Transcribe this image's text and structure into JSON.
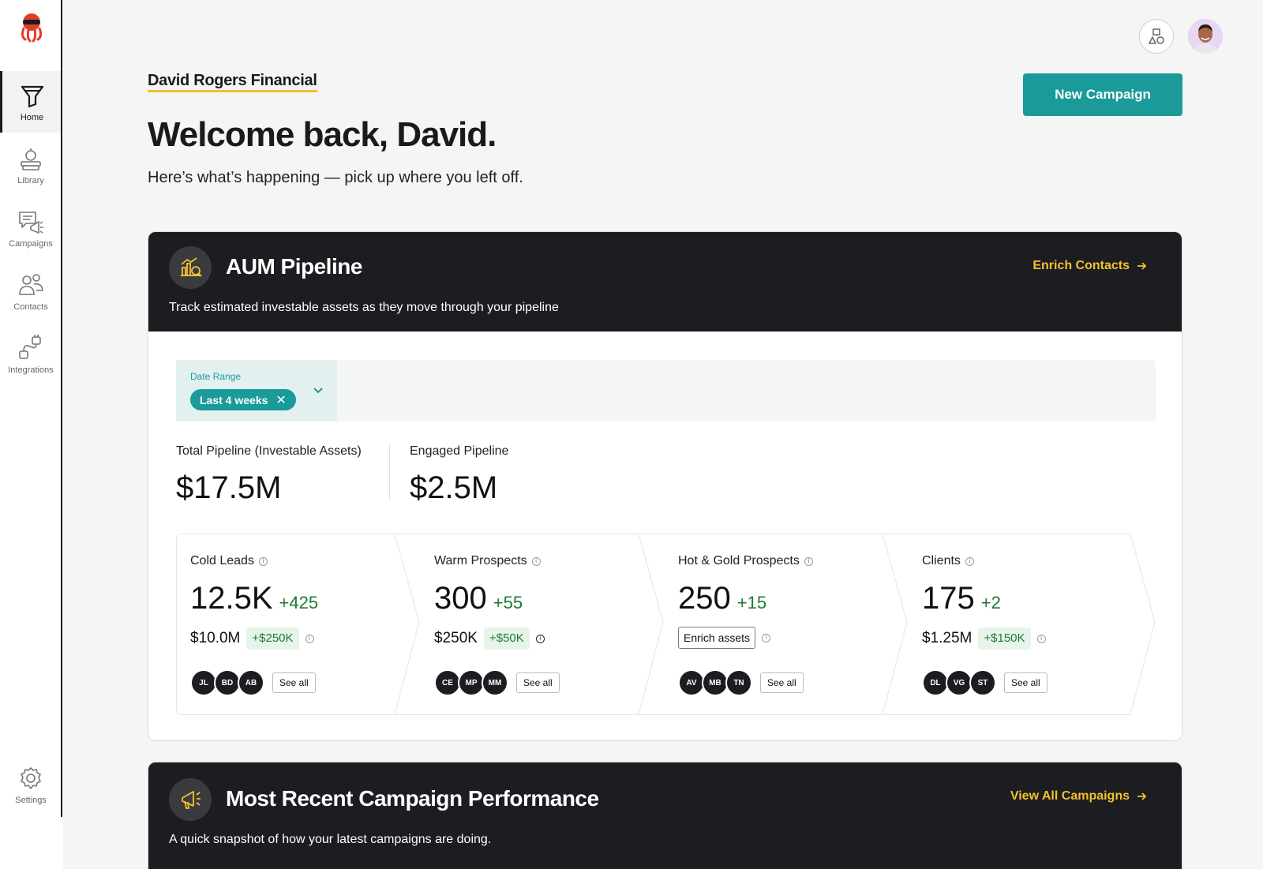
{
  "sidebar": {
    "items": [
      {
        "label": "Home",
        "active": true
      },
      {
        "label": "Library"
      },
      {
        "label": "Campaigns"
      },
      {
        "label": "Contacts"
      },
      {
        "label": "Integrations"
      }
    ],
    "settings_label": "Settings"
  },
  "header": {
    "company": "David Rogers Financial",
    "welcome": "Welcome back, David.",
    "subtitle": "Here’s what’s happening — pick up where you left off.",
    "new_campaign_label": "New Campaign"
  },
  "aum": {
    "title": "AUM Pipeline",
    "description": "Track estimated investable assets as they move through your pipeline",
    "link_label": "Enrich Contacts",
    "filter": {
      "label": "Date Range",
      "value": "Last 4 weeks"
    },
    "metrics": [
      {
        "label": "Total Pipeline (Investable Assets)",
        "value": "$17.5M"
      },
      {
        "label": "Engaged Pipeline",
        "value": "$2.5M"
      }
    ],
    "stages": [
      {
        "name": "Cold Leads",
        "count": "12.5K",
        "delta": "+425",
        "amount": "$10.0M",
        "amount_delta": "+$250K",
        "avatars": [
          "JL",
          "BD",
          "AB"
        ],
        "see_all": "See all"
      },
      {
        "name": "Warm Prospects",
        "count": "300",
        "delta": "+55",
        "amount": "$250K",
        "amount_delta": "+$50K",
        "avatars": [
          "CE",
          "MP",
          "MM"
        ],
        "see_all": "See all"
      },
      {
        "name": "Hot & Gold Prospects",
        "count": "250",
        "delta": "+15",
        "enrich_label": "Enrich assets",
        "avatars": [
          "AV",
          "MB",
          "TN"
        ],
        "see_all": "See all"
      },
      {
        "name": "Clients",
        "count": "175",
        "delta": "+2",
        "amount": "$1.25M",
        "amount_delta": "+$150K",
        "avatars": [
          "DL",
          "VG",
          "ST"
        ],
        "see_all": "See all"
      }
    ]
  },
  "campaigns": {
    "title": "Most Recent Campaign Performance",
    "description": "A quick snapshot of how your latest campaigns are doing.",
    "link_label": "View All Campaigns"
  },
  "colors": {
    "accent": "#1a9a99",
    "highlight": "#f2c12e",
    "dark": "#1c1d20",
    "positive": "#1e7a34"
  }
}
